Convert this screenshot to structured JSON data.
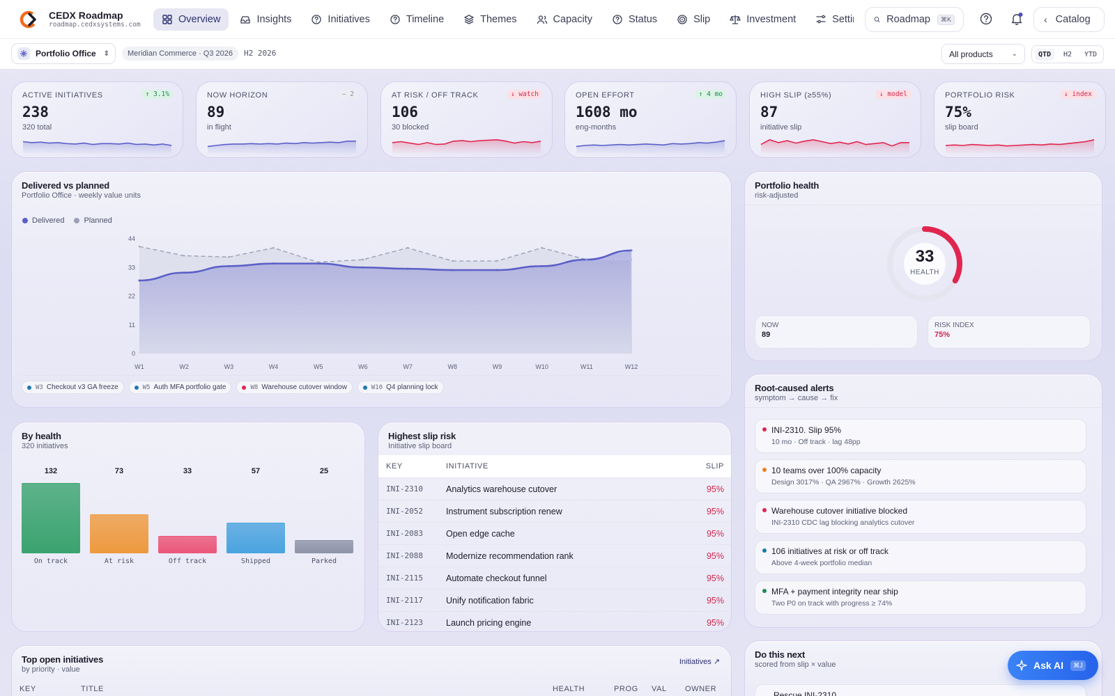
{
  "app": {
    "title": "CEDX Roadmap",
    "url": "roadmap.cedxsystems.com"
  },
  "nav": {
    "items": [
      {
        "label": "Overview",
        "icon": "grid-icon",
        "active": true
      },
      {
        "label": "Insights",
        "icon": "inbox-icon"
      },
      {
        "label": "Initiatives",
        "icon": "help-circle-icon"
      },
      {
        "label": "Timeline",
        "icon": "help-circle-icon"
      },
      {
        "label": "Themes",
        "icon": "layers-icon"
      },
      {
        "label": "Capacity",
        "icon": "users-icon"
      },
      {
        "label": "Status",
        "icon": "help-circle-icon"
      },
      {
        "label": "Slip",
        "icon": "target-icon"
      },
      {
        "label": "Investment",
        "icon": "scale-icon"
      },
      {
        "label": "Settings",
        "icon": "sliders-icon"
      }
    ],
    "search_label": "Roadmap",
    "search_kbd": "⌘K",
    "catalog_label": "Catalog"
  },
  "subbar": {
    "office": "Portfolio Office",
    "meta": "Meridian Commerce · Q3 2026",
    "half": "H2 2026",
    "product_select": "All products",
    "ranges": [
      "QTD",
      "H2",
      "YTD"
    ],
    "range_selected": "QTD"
  },
  "kpis": [
    {
      "label": "ACTIVE INITIATIVES",
      "value": "238",
      "sub": "320 total",
      "badge": "↑ 3.1%",
      "trend": "up",
      "color": "#5b5fc7",
      "spark": [
        12,
        11,
        11.5,
        10.5,
        11,
        10,
        9.5,
        10.5,
        9,
        10,
        10,
        9.5,
        10.5,
        9,
        9.5,
        8.5,
        9.5,
        8
      ]
    },
    {
      "label": "NOW HORIZON",
      "value": "89",
      "sub": "in flight",
      "badge": "– 2",
      "trend": "flat",
      "color": "#5b5fc7",
      "spark": [
        7,
        8,
        9,
        9.5,
        9.5,
        10,
        9.5,
        10,
        9.5,
        10.5,
        10,
        11,
        10.5,
        11,
        11.5,
        11,
        12.5,
        12.5
      ]
    },
    {
      "label": "AT RISK / OFF TRACK",
      "value": "106",
      "sub": "30 blocked",
      "badge": "↓ watch",
      "trend": "down",
      "color": "#e0264f",
      "spark": [
        11,
        12,
        10.5,
        9,
        11,
        9,
        9.5,
        12.5,
        13,
        12,
        13,
        13.5,
        14,
        12.5,
        10.5,
        12,
        11,
        12.5
      ]
    },
    {
      "label": "OPEN EFFORT",
      "value": "1608 mo",
      "sub": "eng-months",
      "badge": "↑ 4 mo",
      "trend": "up",
      "color": "#5b5fc7",
      "spark": [
        7,
        8,
        8.5,
        8,
        8.5,
        9,
        8.5,
        9,
        9.5,
        9,
        8.5,
        10,
        9.5,
        10,
        11,
        10.5,
        11.5,
        13
      ]
    },
    {
      "label": "HIGH SLIP (≥55%)",
      "value": "87",
      "sub": "initiative slip",
      "badge": "↓ model",
      "trend": "down",
      "color": "#e0264f",
      "spark": [
        9,
        14,
        11,
        13,
        10.5,
        12.5,
        14,
        12,
        10,
        11.5,
        9.5,
        12,
        9,
        10,
        11,
        7.5,
        11,
        11
      ]
    },
    {
      "label": "PORTFOLIO RISK",
      "value": "75%",
      "sub": "slip board",
      "badge": "↓ index",
      "trend": "down",
      "color": "#e0264f",
      "spark": [
        8,
        8.5,
        8,
        9,
        8.5,
        8,
        8.5,
        7.5,
        8,
        8.5,
        9,
        8.5,
        9.5,
        9,
        10,
        11,
        12,
        14
      ]
    }
  ],
  "delivered": {
    "title": "Delivered vs planned",
    "subtitle": "Portfolio Office · weekly value units",
    "legend": [
      {
        "name": "Delivered",
        "color": "#5b5fc7"
      },
      {
        "name": "Planned",
        "color": "#9aa0b6"
      }
    ],
    "milestones": [
      {
        "week": "W3",
        "label": "Checkout v3 GA freeze",
        "color": "#1f77b4"
      },
      {
        "week": "W5",
        "label": "Auth MFA portfolio gate",
        "color": "#1f77b4"
      },
      {
        "week": "W8",
        "label": "Warehouse cutover window",
        "color": "#e0264f"
      },
      {
        "week": "W10",
        "label": "Q4 planning lock",
        "color": "#1f77b4"
      }
    ]
  },
  "chart_data": {
    "type": "area",
    "title": "Delivered vs planned",
    "subtitle": "Portfolio Office · weekly value units",
    "x": [
      "W1",
      "W2",
      "W3",
      "W4",
      "W5",
      "W6",
      "W7",
      "W8",
      "W9",
      "W10",
      "W11",
      "W12"
    ],
    "ylim": [
      0,
      44
    ],
    "yticks": [
      0,
      11,
      22,
      33,
      44
    ],
    "series": [
      {
        "name": "Delivered",
        "values": [
          28,
          31,
          33.5,
          34.5,
          34.5,
          33,
          32.5,
          32,
          32,
          33.5,
          36,
          39.5
        ]
      },
      {
        "name": "Planned",
        "values": [
          41,
          37.5,
          37,
          40.5,
          35,
          36,
          40.5,
          35.5,
          35.5,
          40.5,
          36,
          36
        ]
      }
    ],
    "legend": "top-left",
    "grid": false
  },
  "health": {
    "title": "Portfolio health",
    "subtitle": "risk-adjusted",
    "score": "33",
    "score_label": "HEALTH",
    "score_fraction": 0.33,
    "now_label": "NOW",
    "now_value": "89",
    "risk_label": "RISK INDEX",
    "risk_value": "75%"
  },
  "alerts": {
    "title": "Root-caused alerts",
    "subtitle": "symptom → cause → fix",
    "items": [
      {
        "title": "INI-2310. Slip 95%",
        "detail": "10 mo · Off track · lag 48pp",
        "color": "#e0264f"
      },
      {
        "title": "10 teams over 100% capacity",
        "detail": "Design 3017% · QA 2967% · Growth 2625%",
        "color": "#e8821f"
      },
      {
        "title": "Warehouse cutover initiative blocked",
        "detail": "INI-2310 CDC lag blocking analytics cutover",
        "color": "#e0264f"
      },
      {
        "title": "106 initiatives at risk or off track",
        "detail": "Above 4-week portfolio median",
        "color": "#1f77b4"
      },
      {
        "title": "MFA + payment integrity near ship",
        "detail": "Two P0 on track with progress ≥ 74%",
        "color": "#1f8a55"
      }
    ]
  },
  "byhealth": {
    "title": "By health",
    "subtitle": "320 initiatives",
    "bars": [
      {
        "label": "On track",
        "value": 132,
        "color": "#3aa36f"
      },
      {
        "label": "At risk",
        "value": 73,
        "color": "#ee9a3e"
      },
      {
        "label": "Off track",
        "value": 33,
        "color": "#eb5577"
      },
      {
        "label": "Shipped",
        "value": 57,
        "color": "#4aa3df"
      },
      {
        "label": "Parked",
        "value": 25,
        "color": "#8d93a8"
      }
    ]
  },
  "slip": {
    "title": "Highest slip risk",
    "subtitle": "Initiative slip board",
    "columns": [
      "KEY",
      "INITIATIVE",
      "SLIP"
    ],
    "rows": [
      {
        "key": "INI-2310",
        "name": "Analytics warehouse cutover",
        "slip": "95%"
      },
      {
        "key": "INI-2052",
        "name": "Instrument subscription renew",
        "slip": "95%"
      },
      {
        "key": "INI-2083",
        "name": "Open edge cache",
        "slip": "95%"
      },
      {
        "key": "INI-2088",
        "name": "Modernize recommendation rank",
        "slip": "95%"
      },
      {
        "key": "INI-2115",
        "name": "Automate checkout funnel",
        "slip": "95%"
      },
      {
        "key": "INI-2117",
        "name": "Unify notification fabric",
        "slip": "95%"
      },
      {
        "key": "INI-2123",
        "name": "Launch pricing engine",
        "slip": "95%"
      }
    ]
  },
  "topopen": {
    "title": "Top open initiatives",
    "subtitle": "by priority · value",
    "link": "Initiatives ↗",
    "columns": [
      "KEY",
      "TITLE",
      "HEALTH",
      "PROG",
      "VAL",
      "OWNER"
    ]
  },
  "donext": {
    "title": "Do this next",
    "subtitle": "scored from slip × value",
    "first_item": "Rescue INI-2310"
  },
  "askai": {
    "label": "Ask AI",
    "kbd": "⌘J"
  }
}
